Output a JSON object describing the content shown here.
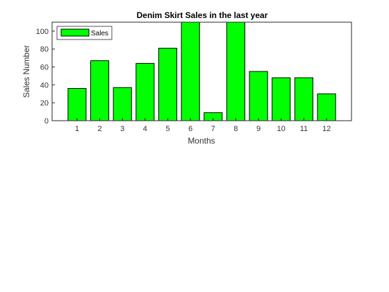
{
  "chart_data": {
    "type": "bar",
    "title": "Denim Skirt Sales  in the last year",
    "xlabel": "Months",
    "ylabel": "Sales Number",
    "categories": [
      "1",
      "2",
      "3",
      "4",
      "5",
      "6",
      "7",
      "8",
      "9",
      "10",
      "11",
      "12"
    ],
    "series": [
      {
        "name": "Sales",
        "values": [
          36,
          67,
          37,
          64,
          81,
          110,
          9,
          110,
          55,
          48,
          48,
          30
        ],
        "color": "#00ff00",
        "edge_color": "#000000"
      }
    ],
    "ylim": [
      0,
      110
    ],
    "yticks": [
      0,
      20,
      40,
      60,
      80,
      100
    ],
    "xlim": [
      -0.1,
      13.1
    ],
    "grid": false,
    "legend": {
      "entries": [
        "Sales"
      ],
      "placement": "top-left"
    }
  }
}
